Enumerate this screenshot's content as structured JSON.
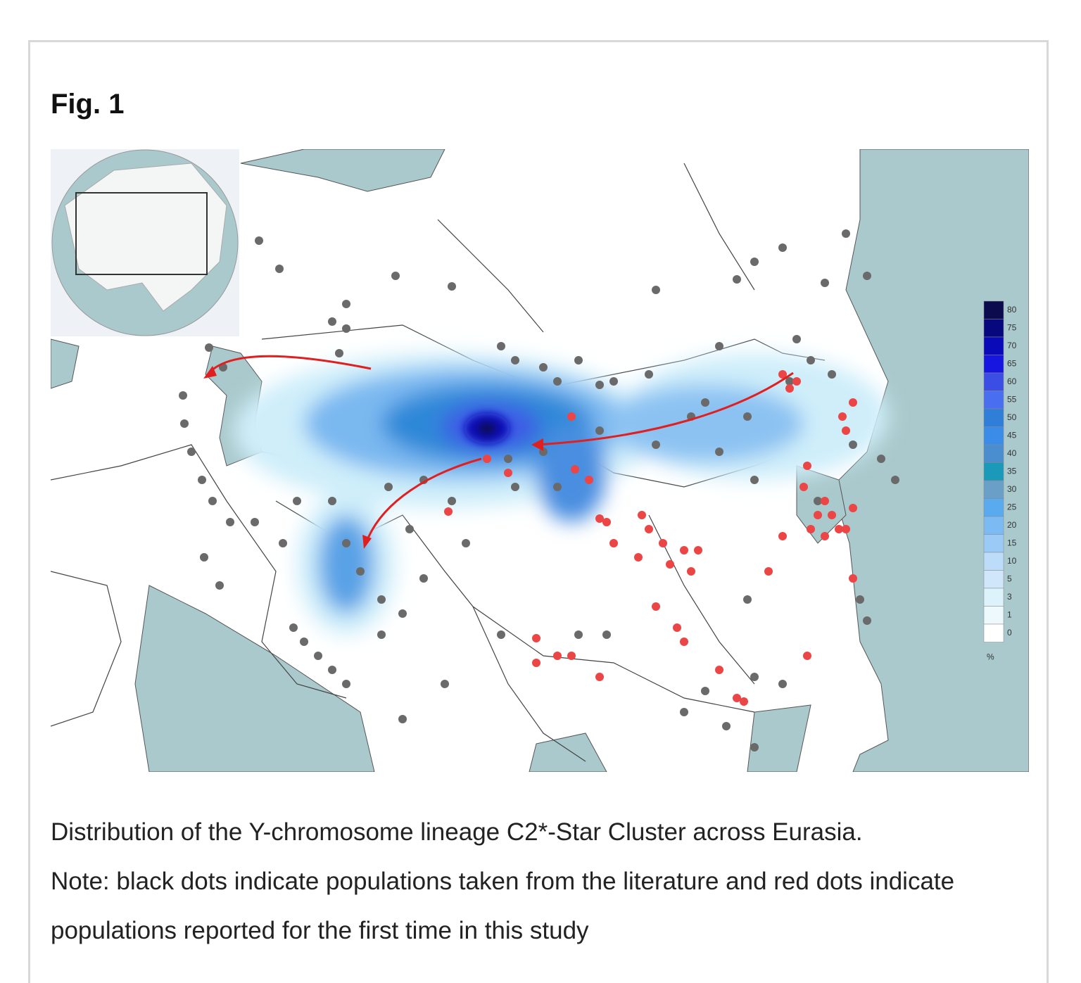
{
  "figure": {
    "title": "Fig. 1",
    "legend": {
      "items": [
        {
          "value": 80,
          "color": "#0b0b4d"
        },
        {
          "value": 75,
          "color": "#08087e"
        },
        {
          "value": 70,
          "color": "#0a0ab8"
        },
        {
          "value": 65,
          "color": "#1616e0"
        },
        {
          "value": 60,
          "color": "#3a4ee6"
        },
        {
          "value": 55,
          "color": "#4a6ef0"
        },
        {
          "value": 50,
          "color": "#2f7fd8"
        },
        {
          "value": 45,
          "color": "#3b8ce8"
        },
        {
          "value": 40,
          "color": "#4a8ed0"
        },
        {
          "value": 35,
          "color": "#1a9ab8"
        },
        {
          "value": 30,
          "color": "#6aa0c8"
        },
        {
          "value": 25,
          "color": "#5aaaf0"
        },
        {
          "value": 20,
          "color": "#7cbaf4"
        },
        {
          "value": 15,
          "color": "#9ccaf6"
        },
        {
          "value": 10,
          "color": "#bcdcfa"
        },
        {
          "value": 5,
          "color": "#cfe6fb"
        },
        {
          "value": 3,
          "color": "#ddf3fb"
        },
        {
          "value": 1,
          "color": "#eef9fd"
        },
        {
          "value": 0,
          "color": "#ffffff"
        }
      ],
      "unit": "%"
    },
    "caption": [
      "Distribution of the Y-chromosome lineage C2*-Star Cluster across Eurasia.",
      "Note: black dots indicate populations taken from the literature and red dots indicate populations reported for the first time in this study"
    ]
  }
}
